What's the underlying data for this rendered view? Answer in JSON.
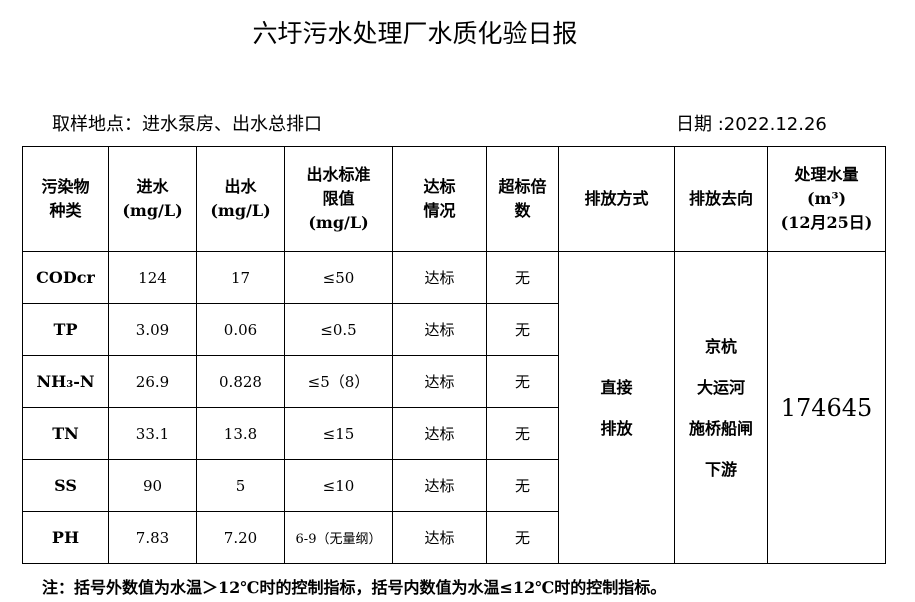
{
  "title": "六圩污水处理厂水质化验日报",
  "location": "取样地点：进水泵房、出水总排口",
  "date": "日期 :2022.12.26",
  "headers": [
    "污染物\n种类",
    "进水\n(mg/L)",
    "出水\n(mg/L)",
    "出水标准\n限值\n(mg/L)",
    "达标\n情况",
    "超标倍\n数",
    "排放方式",
    "排放去向",
    "处理水量\n(m³)\n(12月25日)"
  ],
  "rows": [
    {
      "item": "CODcr",
      "in": "124",
      "out": "17",
      "limit": "≤50",
      "status": "达标",
      "exceed": "无"
    },
    {
      "item": "TP",
      "in": "3.09",
      "out": "0.06",
      "limit": "≤0.5",
      "status": "达标",
      "exceed": "无"
    },
    {
      "item": "NH₃-N",
      "in": "26.9",
      "out": "0.828",
      "limit": "≤5（8）",
      "status": "达标",
      "exceed": "无"
    },
    {
      "item": "TN",
      "in": "33.1",
      "out": "13.8",
      "limit": "≤15",
      "status": "达标",
      "exceed": "无"
    },
    {
      "item": "SS",
      "in": "90",
      "out": "5",
      "limit": "≤10",
      "status": "达标",
      "exceed": "无"
    },
    {
      "item": "PH",
      "in": "7.83",
      "out": "7.20",
      "limit": "6-9（无量纲）",
      "status": "达标",
      "exceed": "无"
    }
  ],
  "discharge_method": "直接\n排放",
  "discharge_destination": "京杭\n大运河\n施桥船闸\n下游",
  "volume": "174645",
  "note": "注：括号外数值为水温＞12℃时的控制指标，括号内数值为水温≤12℃时的控制指标。"
}
